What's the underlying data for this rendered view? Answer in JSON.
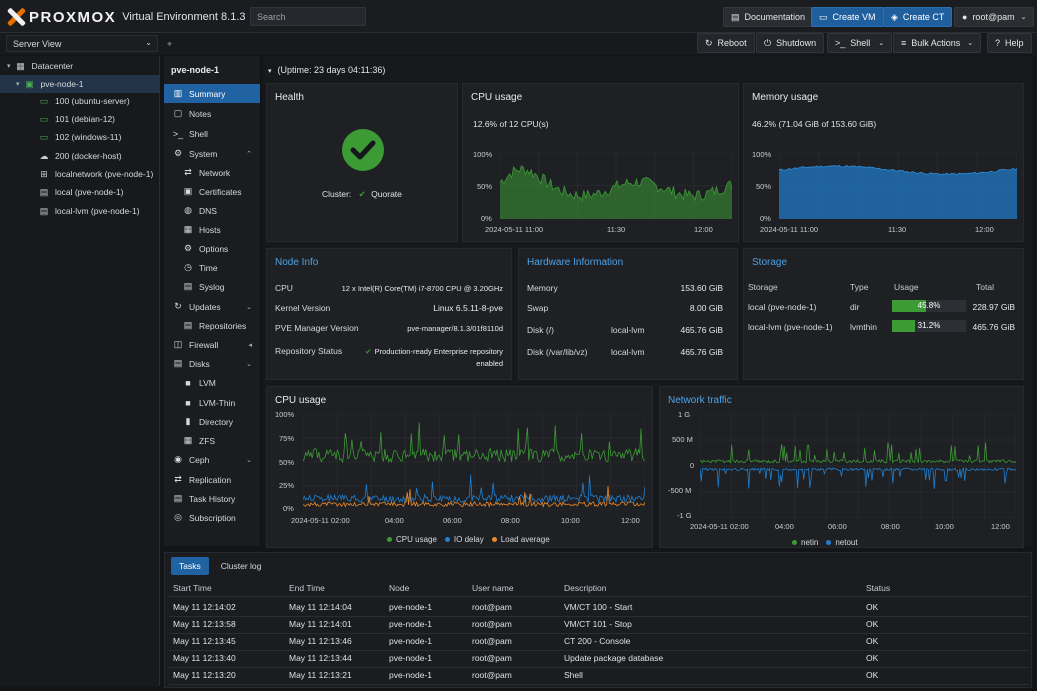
{
  "header": {
    "brand": "PROXMOX",
    "product": "Virtual Environment 8.1.3",
    "search_placeholder": "Search",
    "documentation": "Documentation",
    "create_vm": "Create VM",
    "create_ct": "Create CT",
    "user": "root@pam"
  },
  "toolbar": {
    "server_view": "Server View",
    "reboot": "Reboot",
    "shutdown": "Shutdown",
    "shell": "Shell",
    "bulk_actions": "Bulk Actions",
    "help": "Help"
  },
  "tree": [
    {
      "label": "Datacenter",
      "icon": "datacenter-icon"
    },
    {
      "label": "pve-node-1",
      "icon": "node-icon"
    },
    {
      "label": "100 (ubuntu-server)",
      "icon": "vm-icon"
    },
    {
      "label": "101 (debian-12)",
      "icon": "vm-icon"
    },
    {
      "label": "102 (windows-11)",
      "icon": "vm-icon"
    },
    {
      "label": "200 (docker-host)",
      "icon": "container-icon"
    },
    {
      "label": "localnetwork (pve-node-1)",
      "icon": "network-icon"
    },
    {
      "label": "local (pve-node-1)",
      "icon": "storage-icon"
    },
    {
      "label": "local-lvm (pve-node-1)",
      "icon": "storage-icon"
    }
  ],
  "node_nav": {
    "title": "pve-node-1",
    "items": [
      "Summary",
      "Notes",
      "Shell",
      "System",
      "Network",
      "Certificates",
      "DNS",
      "Hosts",
      "Options",
      "Time",
      "Syslog",
      "Updates",
      "Repositories",
      "Firewall",
      "Disks",
      "LVM",
      "LVM-Thin",
      "Directory",
      "ZFS",
      "Ceph",
      "Replication",
      "Task History",
      "Subscription"
    ]
  },
  "uptime": "(Uptime: 23 days 04:11:36)",
  "health": {
    "title": "Health",
    "cluster_label": "Cluster:",
    "cluster_status": "Quorate"
  },
  "cpu_small": {
    "title": "CPU usage",
    "summary": "12.6% of 12 CPU(s)",
    "yticks": [
      "100%",
      "50%",
      "0%"
    ],
    "xticks": [
      "2024-05-11 11:00",
      "11:30",
      "12:00"
    ]
  },
  "mem_small": {
    "title": "Memory usage",
    "summary": "46.2% (71.04 GiB of 153.60 GiB)",
    "yticks": [
      "100%",
      "50%",
      "0%"
    ],
    "xticks": [
      "2024-05-11 11:00",
      "11:30",
      "12:00"
    ]
  },
  "node_info": {
    "title": "Node Info",
    "rows": [
      {
        "label": "CPU",
        "value": "12 x Intel(R) Core(TM) i7-8700 CPU @ 3.20GHz"
      },
      {
        "label": "Kernel Version",
        "value": "Linux 6.5.11-8-pve"
      },
      {
        "label": "PVE Manager Version",
        "value": "pve-manager/8.1.3/01f8110d"
      },
      {
        "label": "Repository Status",
        "value": "Production-ready Enterprise repository",
        "value2": "enabled"
      }
    ]
  },
  "hardware": {
    "title": "Hardware Information",
    "rows": [
      {
        "label": "Memory",
        "mid": "",
        "value": "153.60 GiB"
      },
      {
        "label": "Swap",
        "mid": "",
        "value": "8.00 GiB"
      },
      {
        "label": "Disk (/)",
        "mid": "local-lvm",
        "value": "465.76 GiB"
      },
      {
        "label": "Disk (/var/lib/vz)",
        "mid": "local-lvm",
        "value": "465.76 GiB"
      }
    ]
  },
  "storage": {
    "title": "Storage",
    "headers": [
      "Storage",
      "Type",
      "Usage",
      "Total"
    ],
    "rows": [
      {
        "name": "local (pve-node-1)",
        "type": "dir",
        "usage": "45.8%",
        "usage_frac": 0.458,
        "total": "228.97 GiB"
      },
      {
        "name": "local-lvm (pve-node-1)",
        "type": "lvmthin",
        "usage": "31.2%",
        "usage_frac": 0.312,
        "total": "465.76 GiB"
      }
    ]
  },
  "cpu_big": {
    "title": "CPU usage",
    "yticks": [
      "100%",
      "75%",
      "50%",
      "25%",
      "0%"
    ],
    "xticks": [
      "2024-05-11 02:00",
      "04:00",
      "06:00",
      "08:00",
      "10:00",
      "12:00"
    ],
    "legend": [
      "CPU usage",
      "IO delay",
      "Load average"
    ]
  },
  "net": {
    "title": "Network traffic",
    "yticks": [
      "1 G",
      "500 M",
      "0",
      "-500 M",
      "-1 G"
    ],
    "xticks": [
      "2024-05-11 02:00",
      "04:00",
      "06:00",
      "08:00",
      "10:00",
      "12:00"
    ],
    "legend": [
      "netin",
      "netout"
    ]
  },
  "colors": {
    "green": "#3d9b36",
    "blue": "#1f7fd0",
    "orange": "#e8892a",
    "accent": "#2162a3"
  },
  "tasks": {
    "tabs": [
      "Tasks",
      "Cluster log"
    ],
    "headers": [
      "Start Time",
      "End Time",
      "Node",
      "User name",
      "Description",
      "Status"
    ],
    "rows": [
      [
        "May 11 12:14:02",
        "May 11 12:14:04",
        "pve-node-1",
        "root@pam",
        "VM/CT 100 - Start",
        "OK"
      ],
      [
        "May 11 12:13:58",
        "May 11 12:14:01",
        "pve-node-1",
        "root@pam",
        "VM/CT 101 - Stop",
        "OK"
      ],
      [
        "May 11 12:13:45",
        "May 11 12:13:46",
        "pve-node-1",
        "root@pam",
        "CT 200 - Console",
        "OK"
      ],
      [
        "May 11 12:13:40",
        "May 11 12:13:44",
        "pve-node-1",
        "root@pam",
        "Update package database",
        "OK"
      ],
      [
        "May 11 12:13:20",
        "May 11 12:13:21",
        "pve-node-1",
        "root@pam",
        "Shell",
        "OK"
      ]
    ]
  }
}
